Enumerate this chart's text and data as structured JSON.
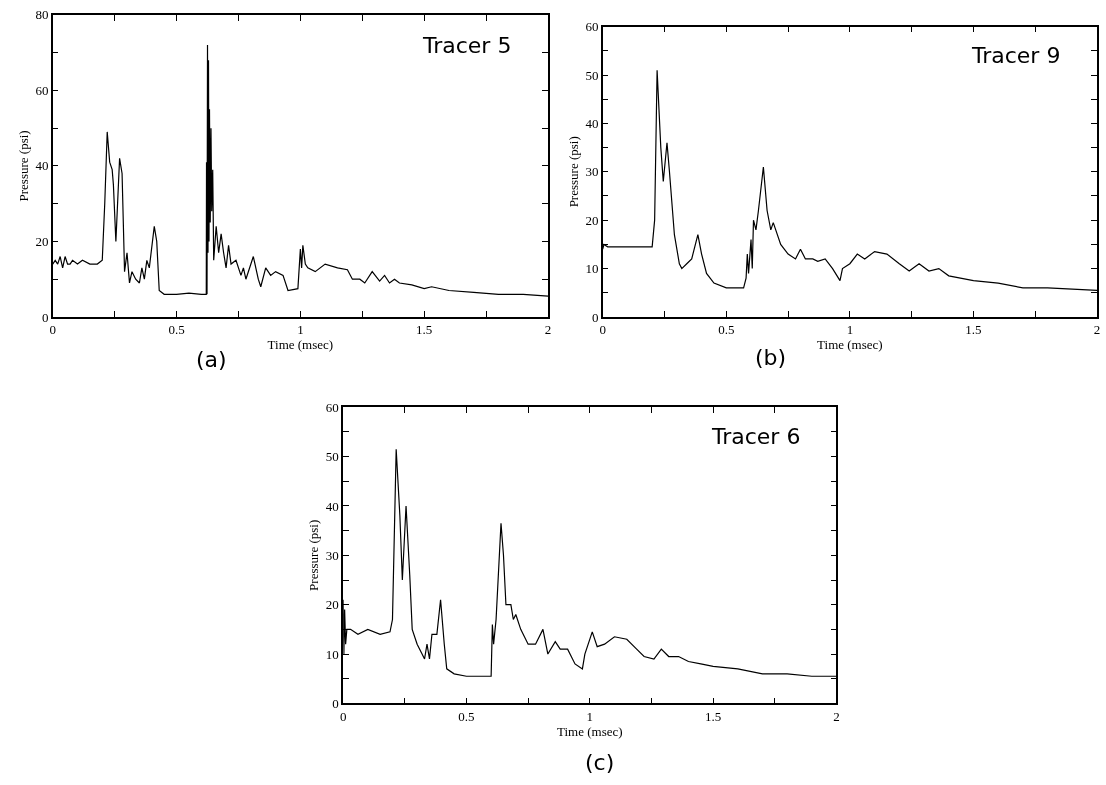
{
  "chart_data": [
    {
      "type": "line",
      "xlabel": "Time (msec)",
      "ylabel": "Pressure (psi)",
      "annotations": [
        "Tracer 5",
        "(a)"
      ],
      "xlim": [
        0,
        2
      ],
      "ylim": [
        0,
        80
      ],
      "xticks": [
        0,
        {
          "value": 0.25,
          "label": null
        },
        0.5,
        {
          "value": 0.75,
          "label": null
        },
        1,
        {
          "value": 1.25,
          "label": null
        },
        1.5,
        {
          "value": 1.75,
          "label": null
        },
        2
      ],
      "yticks": [
        0,
        {
          "value": 10,
          "label": null
        },
        20,
        {
          "value": 30,
          "label": null
        },
        40,
        {
          "value": 50,
          "label": null
        },
        60,
        {
          "value": 70,
          "label": null
        },
        80
      ],
      "marker": "none",
      "line_style": "solid",
      "series": [
        {
          "color": "#000000",
          "x": [
            0,
            0.01,
            0.02,
            0.03,
            0.04,
            0.05,
            0.06,
            0.07,
            0.08,
            0.1,
            0.12,
            0.15,
            0.18,
            0.2,
            0.21,
            0.22,
            0.23,
            0.24,
            0.245,
            0.255,
            0.27,
            0.28,
            0.29,
            0.3,
            0.31,
            0.32,
            0.335,
            0.35,
            0.36,
            0.37,
            0.38,
            0.39,
            0.41,
            0.42,
            0.43,
            0.45,
            0.5,
            0.55,
            0.6,
            0.62,
            0.621,
            0.623,
            0.625,
            0.627,
            0.629,
            0.631,
            0.633,
            0.636,
            0.639,
            0.642,
            0.646,
            0.65,
            0.66,
            0.67,
            0.68,
            0.69,
            0.7,
            0.71,
            0.72,
            0.74,
            0.76,
            0.77,
            0.78,
            0.81,
            0.83,
            0.84,
            0.86,
            0.88,
            0.9,
            0.93,
            0.95,
            0.99,
            1.0,
            1.005,
            1.01,
            1.02,
            1.03,
            1.06,
            1.1,
            1.15,
            1.19,
            1.21,
            1.24,
            1.26,
            1.29,
            1.32,
            1.34,
            1.36,
            1.38,
            1.4,
            1.45,
            1.5,
            1.53,
            1.6,
            1.7,
            1.8,
            1.9,
            2.0
          ],
          "values": [
            14,
            15,
            14,
            16,
            13,
            16,
            14,
            14,
            15,
            14,
            15,
            14,
            14,
            15,
            30,
            49,
            41,
            39,
            35,
            20,
            42,
            38,
            12,
            17,
            9,
            12,
            10,
            9,
            13,
            10,
            15,
            13,
            24,
            20,
            7,
            6,
            6,
            6.3,
            6,
            6,
            41,
            6,
            72,
            17,
            68,
            20,
            55,
            25,
            50,
            28,
            39,
            15,
            24,
            17,
            22,
            17,
            13,
            19,
            14,
            15,
            11,
            13,
            10,
            16,
            10,
            8,
            13,
            11,
            12,
            11,
            7,
            7.5,
            18,
            13,
            19,
            14,
            13,
            12,
            14,
            13,
            12.5,
            10,
            10,
            9,
            12,
            9.5,
            11,
            9,
            10,
            9,
            8.5,
            7.5,
            8,
            7,
            6.5,
            6,
            6,
            5.5
          ]
        }
      ]
    },
    {
      "type": "line",
      "xlabel": "Time (msec)",
      "ylabel": "Pressure (psi)",
      "annotations": [
        "Tracer 9",
        "(b)"
      ],
      "xlim": [
        0,
        2
      ],
      "ylim": [
        0,
        60
      ],
      "xticks": [
        0,
        {
          "value": 0.25,
          "label": null
        },
        0.5,
        {
          "value": 0.75,
          "label": null
        },
        1,
        {
          "value": 1.25,
          "label": null
        },
        1.5,
        {
          "value": 1.75,
          "label": null
        },
        2
      ],
      "yticks": [
        0,
        {
          "value": 5,
          "label": null
        },
        10,
        {
          "value": 15,
          "label": null
        },
        20,
        {
          "value": 25,
          "label": null
        },
        30,
        {
          "value": 35,
          "label": null
        },
        40,
        {
          "value": 45,
          "label": null
        },
        50,
        {
          "value": 55,
          "label": null
        },
        60
      ],
      "marker": "none",
      "line_style": "solid",
      "series": [
        {
          "color": "#000000",
          "x": [
            0,
            0.005,
            0.02,
            0.05,
            0.1,
            0.15,
            0.2,
            0.21,
            0.22,
            0.235,
            0.245,
            0.26,
            0.27,
            0.29,
            0.31,
            0.32,
            0.34,
            0.36,
            0.385,
            0.4,
            0.42,
            0.45,
            0.5,
            0.57,
            0.58,
            0.585,
            0.59,
            0.6,
            0.605,
            0.61,
            0.62,
            0.63,
            0.65,
            0.665,
            0.68,
            0.69,
            0.72,
            0.75,
            0.78,
            0.8,
            0.82,
            0.85,
            0.87,
            0.9,
            0.93,
            0.96,
            0.97,
            1.0,
            1.03,
            1.06,
            1.1,
            1.15,
            1.2,
            1.24,
            1.28,
            1.32,
            1.36,
            1.4,
            1.5,
            1.6,
            1.7,
            1.8,
            2.0
          ],
          "values": [
            14,
            15,
            14.5,
            14.5,
            14.5,
            14.5,
            14.5,
            20,
            51,
            35,
            28,
            36,
            30,
            17,
            11,
            10,
            11,
            12,
            17,
            13,
            9,
            7,
            6,
            6,
            8,
            13,
            9,
            16,
            10,
            20,
            18,
            22,
            31,
            22,
            18,
            19.5,
            15,
            13,
            12,
            14,
            12,
            12,
            11.5,
            12,
            10,
            7.5,
            10,
            11,
            13,
            12,
            13.5,
            13,
            11,
            9.5,
            11,
            9.5,
            10,
            8.5,
            7.5,
            7,
            6,
            6,
            5.5
          ]
        }
      ]
    },
    {
      "type": "line",
      "xlabel": "Time (msec)",
      "ylabel": "Pressure (psi)",
      "annotations": [
        "Tracer 6",
        "(c)"
      ],
      "xlim": [
        0,
        2
      ],
      "ylim": [
        0,
        60
      ],
      "xticks": [
        0,
        {
          "value": 0.25,
          "label": null
        },
        0.5,
        {
          "value": 0.75,
          "label": null
        },
        1,
        {
          "value": 1.25,
          "label": null
        },
        1.5,
        {
          "value": 1.75,
          "label": null
        },
        2
      ],
      "yticks": [
        0,
        {
          "value": 5,
          "label": null
        },
        10,
        {
          "value": 15,
          "label": null
        },
        20,
        {
          "value": 25,
          "label": null
        },
        30,
        {
          "value": 35,
          "label": null
        },
        40,
        {
          "value": 45,
          "label": null
        },
        50,
        {
          "value": 55,
          "label": null
        },
        60
      ],
      "marker": "none",
      "line_style": "solid",
      "series": [
        {
          "color": "#000000",
          "x": [
            0,
            0.003,
            0.006,
            0.01,
            0.015,
            0.03,
            0.06,
            0.1,
            0.15,
            0.19,
            0.2,
            0.21,
            0.215,
            0.23,
            0.24,
            0.255,
            0.27,
            0.28,
            0.3,
            0.32,
            0.33,
            0.34,
            0.35,
            0.36,
            0.38,
            0.395,
            0.41,
            0.42,
            0.45,
            0.5,
            0.6,
            0.605,
            0.61,
            0.62,
            0.64,
            0.65,
            0.66,
            0.68,
            0.69,
            0.7,
            0.72,
            0.75,
            0.78,
            0.81,
            0.83,
            0.86,
            0.88,
            0.91,
            0.94,
            0.97,
            0.98,
            1.01,
            1.03,
            1.06,
            1.1,
            1.15,
            1.19,
            1.22,
            1.26,
            1.29,
            1.32,
            1.36,
            1.4,
            1.45,
            1.5,
            1.6,
            1.7,
            1.8,
            1.9,
            2.0
          ],
          "values": [
            21,
            10,
            19,
            12,
            15,
            15,
            14,
            15,
            14,
            14.5,
            17,
            40,
            51.5,
            38,
            25,
            40,
            26,
            15,
            12,
            10,
            9,
            12,
            9,
            14,
            14,
            21,
            12,
            7,
            6,
            5.5,
            5.5,
            16,
            12,
            17,
            36.5,
            30,
            20,
            20,
            17,
            18,
            15,
            12,
            12,
            15,
            10,
            12.5,
            11,
            11,
            8,
            7,
            10,
            14.5,
            11.5,
            12,
            13.5,
            13,
            11,
            9.5,
            9,
            11,
            9.5,
            9.5,
            8.5,
            8,
            7.5,
            7,
            6,
            6,
            5.5,
            5.5
          ]
        }
      ]
    }
  ]
}
